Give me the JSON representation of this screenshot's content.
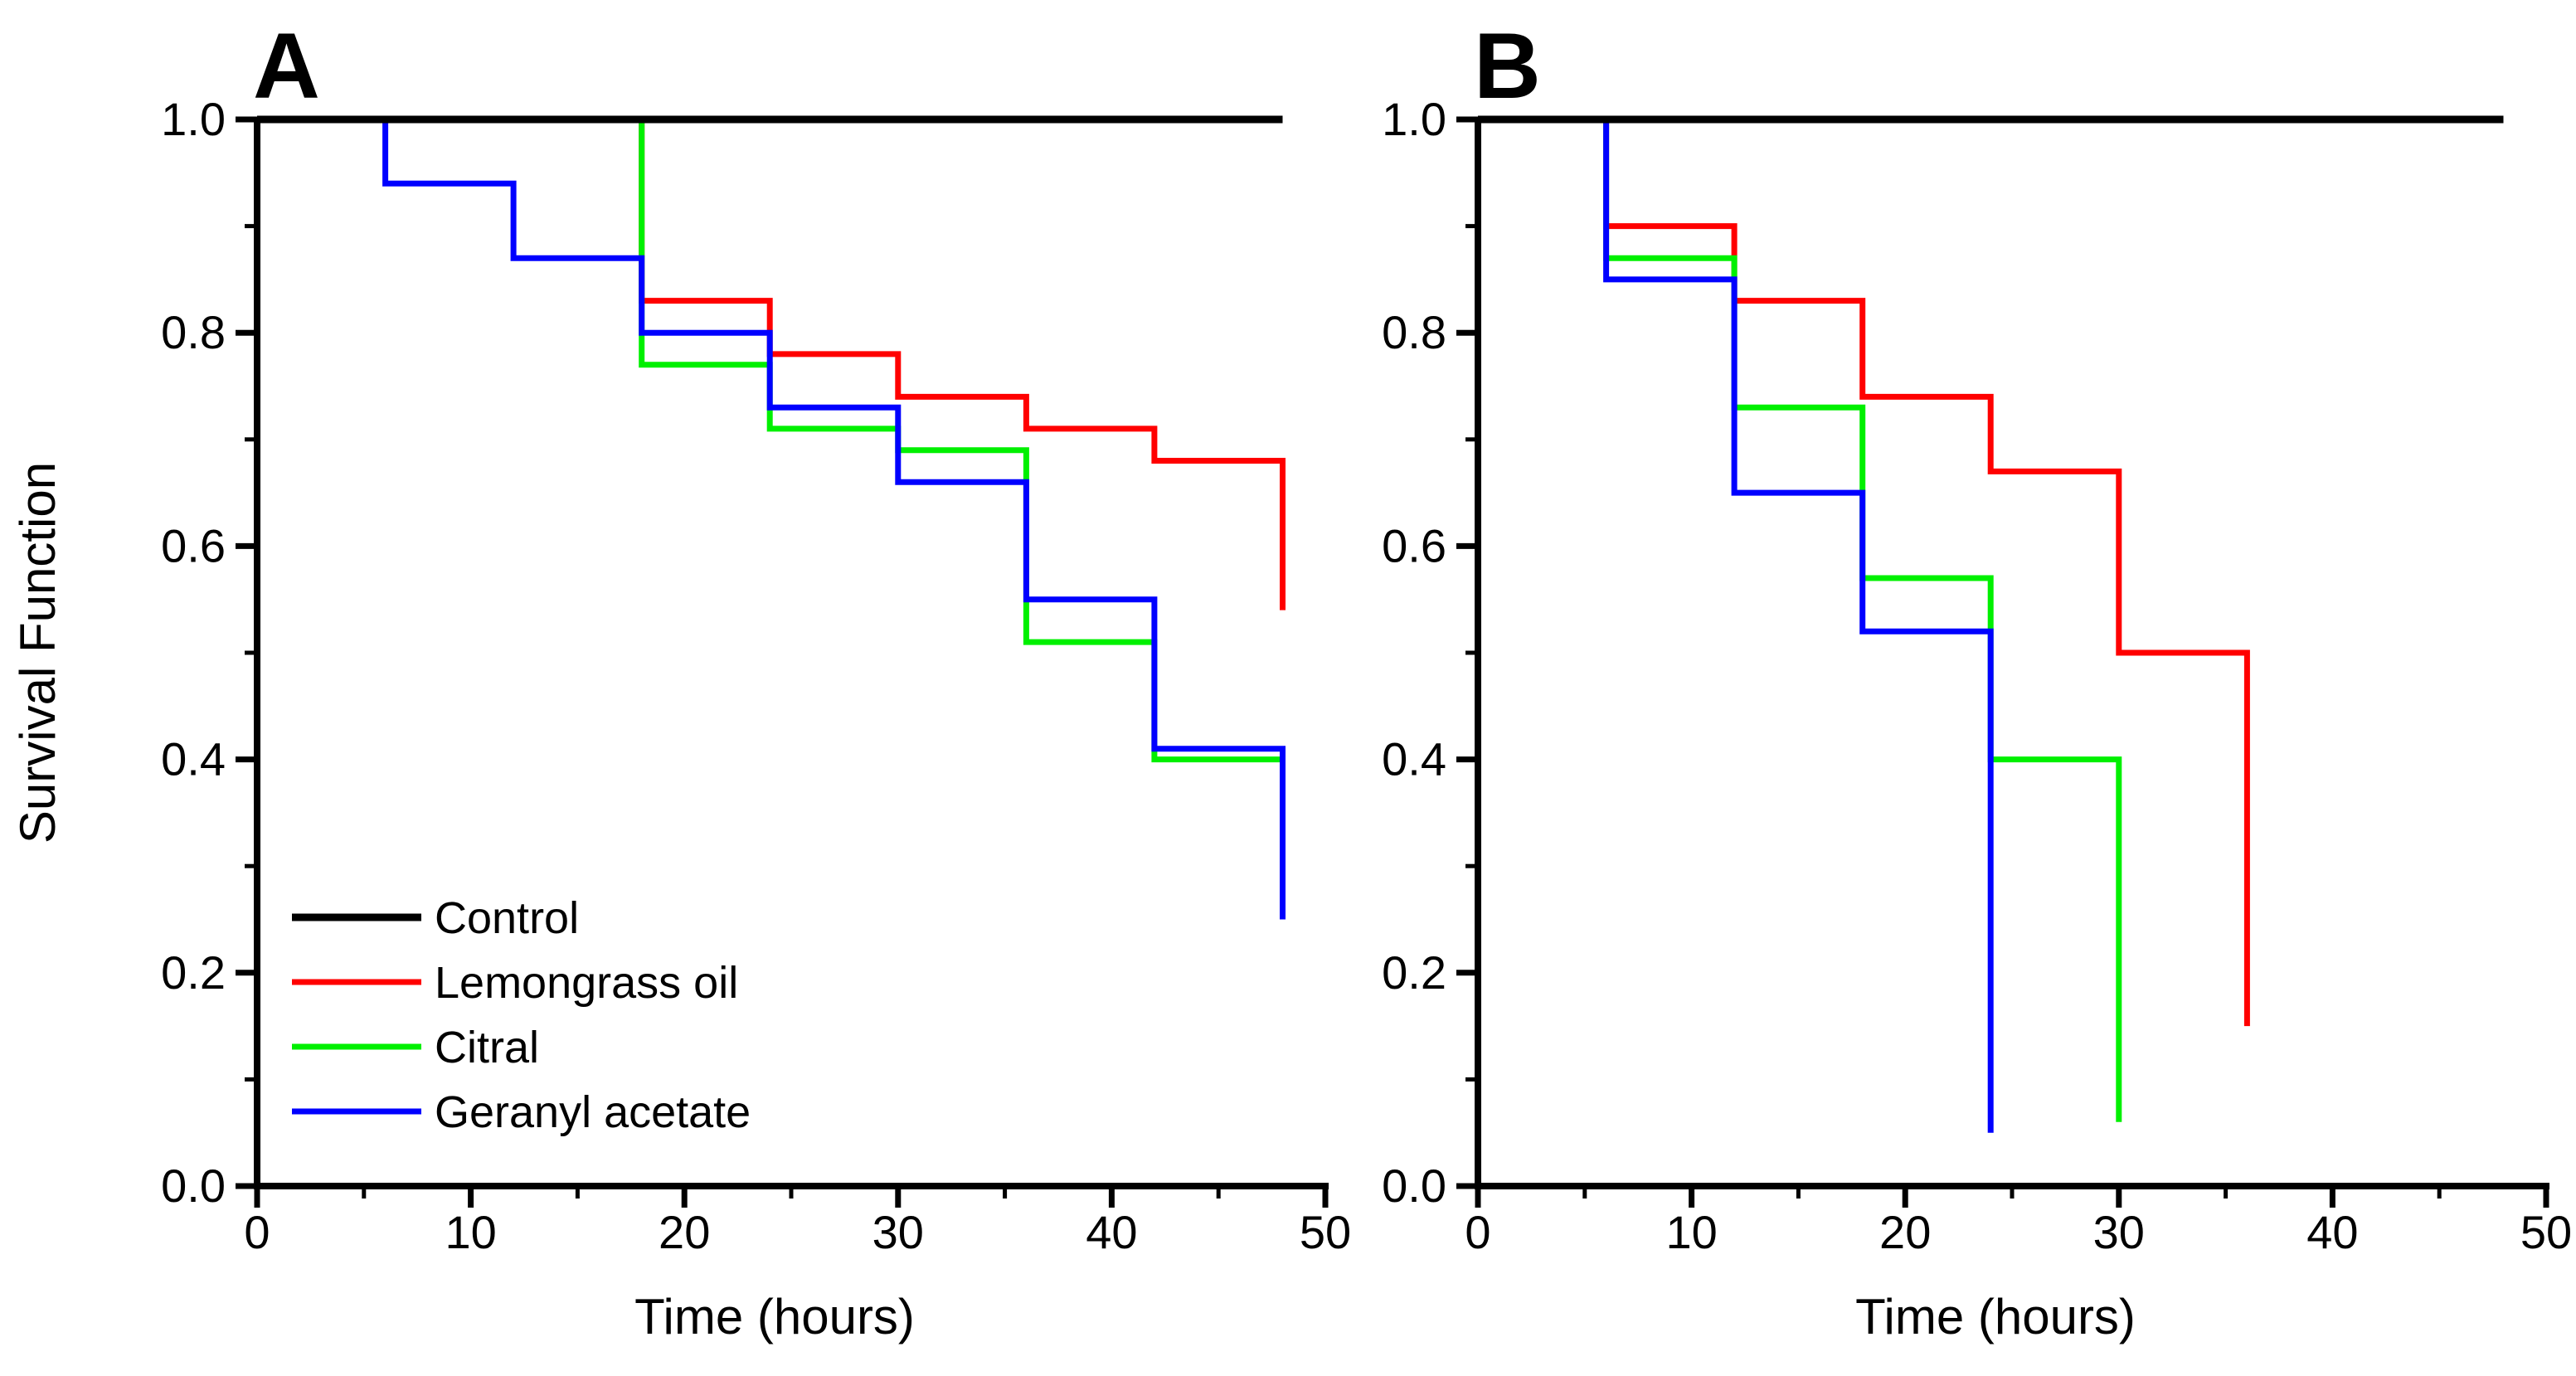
{
  "figure": {
    "y_axis_title": "Survival Function",
    "x_axis_title": "Time (hours)",
    "background": "#ffffff",
    "axis_color": "#000000"
  },
  "chart_data": [
    {
      "type": "line",
      "subtype": "kaplan-meier-step",
      "panel_label": "A",
      "xlabel": "Time (hours)",
      "ylabel": "Survival Function",
      "xlim": [
        0,
        50
      ],
      "ylim": [
        0.0,
        1.0
      ],
      "grid": false,
      "legend_position": "lower-left-inside",
      "x_ticks_major": [
        0,
        10,
        20,
        30,
        40,
        50
      ],
      "x_tick_labels": [
        "0",
        "10",
        "20",
        "30",
        "40",
        "50"
      ],
      "x_ticks_minor": [
        5,
        15,
        25,
        35,
        45
      ],
      "y_ticks_major": [
        1.0,
        0.8,
        0.6,
        0.4,
        0.2,
        0.0
      ],
      "y_tick_labels": [
        "1.0",
        "0.8",
        "0.6",
        "0.4",
        "0.2",
        "0.0"
      ],
      "y_ticks_minor": [
        0.9,
        0.7,
        0.5,
        0.3,
        0.1
      ],
      "series": [
        {
          "name": "Control",
          "color": "#000000",
          "points": [
            [
              0,
              1.0
            ],
            [
              48,
              1.0
            ]
          ]
        },
        {
          "name": "Lemongrass oil",
          "color": "#FF0000",
          "points": [
            [
              0,
              1.0
            ],
            [
              18,
              1.0
            ],
            [
              18,
              0.83
            ],
            [
              24,
              0.83
            ],
            [
              24,
              0.78
            ],
            [
              30,
              0.78
            ],
            [
              30,
              0.74
            ],
            [
              36,
              0.74
            ],
            [
              36,
              0.71
            ],
            [
              42,
              0.71
            ],
            [
              42,
              0.68
            ],
            [
              48,
              0.68
            ],
            [
              48,
              0.54
            ]
          ]
        },
        {
          "name": "Citral",
          "color": "#00F000",
          "points": [
            [
              0,
              1.0
            ],
            [
              18,
              1.0
            ],
            [
              18,
              0.77
            ],
            [
              24,
              0.77
            ],
            [
              24,
              0.71
            ],
            [
              30,
              0.71
            ],
            [
              30,
              0.69
            ],
            [
              36,
              0.69
            ],
            [
              36,
              0.51
            ],
            [
              42,
              0.51
            ],
            [
              42,
              0.4
            ],
            [
              48,
              0.4
            ]
          ]
        },
        {
          "name": "Geranyl acetate",
          "color": "#0000FF",
          "points": [
            [
              0,
              1.0
            ],
            [
              6,
              1.0
            ],
            [
              6,
              0.94
            ],
            [
              12,
              0.94
            ],
            [
              12,
              0.87
            ],
            [
              18,
              0.87
            ],
            [
              18,
              0.8
            ],
            [
              24,
              0.8
            ],
            [
              24,
              0.73
            ],
            [
              30,
              0.73
            ],
            [
              30,
              0.66
            ],
            [
              36,
              0.66
            ],
            [
              36,
              0.55
            ],
            [
              42,
              0.55
            ],
            [
              42,
              0.41
            ],
            [
              48,
              0.41
            ],
            [
              48,
              0.25
            ]
          ]
        }
      ]
    },
    {
      "type": "line",
      "subtype": "kaplan-meier-step",
      "panel_label": "B",
      "xlabel": "Time (hours)",
      "ylabel": "Survival Function",
      "xlim": [
        0,
        50
      ],
      "ylim": [
        0.0,
        1.0
      ],
      "grid": false,
      "legend_position": "none",
      "x_ticks_major": [
        0,
        10,
        20,
        30,
        40,
        50
      ],
      "x_tick_labels": [
        "0",
        "10",
        "20",
        "30",
        "40",
        "50"
      ],
      "x_ticks_minor": [
        5,
        15,
        25,
        35,
        45
      ],
      "y_ticks_major": [
        1.0,
        0.8,
        0.6,
        0.4,
        0.2,
        0.0
      ],
      "y_tick_labels": [
        "1.0",
        "0.8",
        "0.6",
        "0.4",
        "0.2",
        "0.0"
      ],
      "y_ticks_minor": [
        0.9,
        0.7,
        0.5,
        0.3,
        0.1
      ],
      "series": [
        {
          "name": "Control",
          "color": "#000000",
          "points": [
            [
              0,
              1.0
            ],
            [
              48,
              1.0
            ]
          ]
        },
        {
          "name": "Lemongrass oil",
          "color": "#FF0000",
          "points": [
            [
              0,
              1.0
            ],
            [
              6,
              1.0
            ],
            [
              6,
              0.9
            ],
            [
              12,
              0.9
            ],
            [
              12,
              0.83
            ],
            [
              18,
              0.83
            ],
            [
              18,
              0.74
            ],
            [
              24,
              0.74
            ],
            [
              24,
              0.67
            ],
            [
              30,
              0.67
            ],
            [
              30,
              0.5
            ],
            [
              36,
              0.5
            ],
            [
              36,
              0.15
            ]
          ]
        },
        {
          "name": "Citral",
          "color": "#00F000",
          "points": [
            [
              0,
              1.0
            ],
            [
              6,
              1.0
            ],
            [
              6,
              0.87
            ],
            [
              12,
              0.87
            ],
            [
              12,
              0.73
            ],
            [
              18,
              0.73
            ],
            [
              18,
              0.57
            ],
            [
              24,
              0.57
            ],
            [
              24,
              0.4
            ],
            [
              30,
              0.4
            ],
            [
              30,
              0.06
            ]
          ]
        },
        {
          "name": "Geranyl acetate",
          "color": "#0000FF",
          "points": [
            [
              0,
              1.0
            ],
            [
              6,
              1.0
            ],
            [
              6,
              0.85
            ],
            [
              12,
              0.85
            ],
            [
              12,
              0.65
            ],
            [
              18,
              0.65
            ],
            [
              18,
              0.52
            ],
            [
              24,
              0.52
            ],
            [
              24,
              0.05
            ]
          ]
        }
      ]
    }
  ],
  "legend": {
    "items": [
      "Control",
      "Lemongrass oil",
      "Citral",
      "Geranyl acetate"
    ]
  }
}
